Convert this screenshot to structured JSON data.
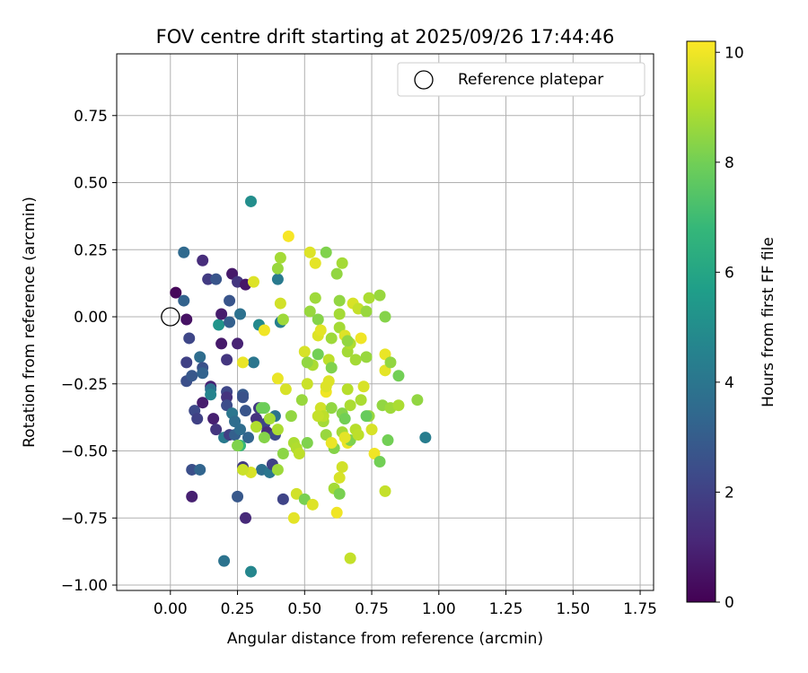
{
  "chart_data": {
    "type": "scatter",
    "title": "FOV centre drift starting at 2025/09/26 17:44:46",
    "xlabel": "Angular distance from reference (arcmin)",
    "ylabel": "Rotation from reference (arcmin)",
    "xlim": [
      -0.2,
      1.8
    ],
    "ylim": [
      -1.02,
      0.98
    ],
    "xticks": [
      0.0,
      0.25,
      0.5,
      0.75,
      1.0,
      1.25,
      1.5,
      1.75
    ],
    "xtick_labels": [
      "0.00",
      "0.25",
      "0.50",
      "0.75",
      "1.00",
      "1.25",
      "1.50",
      "1.75"
    ],
    "yticks": [
      -1.0,
      -0.75,
      -0.5,
      -0.25,
      0.0,
      0.25,
      0.5,
      0.75
    ],
    "ytick_labels": [
      "−1.00",
      "−0.75",
      "−0.50",
      "−0.25",
      "0.00",
      "0.25",
      "0.50",
      "0.75"
    ],
    "grid": true,
    "legend": {
      "position": "top-right",
      "label": "Reference platepar"
    },
    "reference_point": {
      "x": 0.0,
      "y": 0.0
    },
    "colorbar": {
      "label": "Hours from first FF file",
      "range": [
        0,
        10.2
      ],
      "ticks": [
        0,
        2,
        4,
        6,
        8,
        10
      ],
      "tick_labels": [
        "0",
        "2",
        "4",
        "6",
        "8",
        "10"
      ],
      "colormap": [
        "#440154",
        "#482878",
        "#3e4989",
        "#31688e",
        "#26828e",
        "#1f9e89",
        "#35b779",
        "#6ece58",
        "#b5de2b",
        "#fde725"
      ]
    },
    "points": [
      [
        0.02,
        0.09,
        0.2
      ],
      [
        0.05,
        0.24,
        3.5
      ],
      [
        0.05,
        0.06,
        3.2
      ],
      [
        0.06,
        -0.01,
        0.5
      ],
      [
        0.06,
        -0.17,
        2.0
      ],
      [
        0.06,
        -0.24,
        2.5
      ],
      [
        0.07,
        -0.08,
        2.2
      ],
      [
        0.08,
        -0.22,
        2.8
      ],
      [
        0.09,
        -0.35,
        2.3
      ],
      [
        0.1,
        -0.38,
        2.0
      ],
      [
        0.08,
        -0.57,
        2.5
      ],
      [
        0.08,
        -0.67,
        0.9
      ],
      [
        0.11,
        -0.15,
        3.6
      ],
      [
        0.12,
        -0.19,
        2.6
      ],
      [
        0.12,
        -0.21,
        3.2
      ],
      [
        0.12,
        0.21,
        1.3
      ],
      [
        0.12,
        -0.32,
        0.8
      ],
      [
        0.11,
        -0.57,
        3.3
      ],
      [
        0.14,
        0.14,
        1.8
      ],
      [
        0.15,
        -0.26,
        1.0
      ],
      [
        0.15,
        -0.27,
        3.8
      ],
      [
        0.15,
        -0.29,
        4.6
      ],
      [
        0.16,
        -0.38,
        0.9
      ],
      [
        0.17,
        0.14,
        2.7
      ],
      [
        0.17,
        -0.42,
        1.6
      ],
      [
        0.18,
        -0.03,
        5.3
      ],
      [
        0.19,
        0.01,
        0.8
      ],
      [
        0.19,
        -0.1,
        0.7
      ],
      [
        0.2,
        -0.45,
        4.2
      ],
      [
        0.2,
        -0.91,
        3.9
      ],
      [
        0.21,
        -0.16,
        1.6
      ],
      [
        0.21,
        -0.28,
        2.2
      ],
      [
        0.21,
        -0.3,
        1.5
      ],
      [
        0.21,
        -0.33,
        2.4
      ],
      [
        0.22,
        0.06,
        2.7
      ],
      [
        0.22,
        -0.44,
        1.9
      ],
      [
        0.22,
        -0.02,
        3.1
      ],
      [
        0.23,
        0.16,
        0.7
      ],
      [
        0.23,
        -0.36,
        4.0
      ],
      [
        0.24,
        -0.39,
        3.6
      ],
      [
        0.24,
        -0.44,
        3.1
      ],
      [
        0.25,
        0.13,
        1.6
      ],
      [
        0.25,
        -0.1,
        1.0
      ],
      [
        0.26,
        0.01,
        3.8
      ],
      [
        0.25,
        -0.67,
        2.8
      ],
      [
        0.26,
        -0.42,
        3.6
      ],
      [
        0.27,
        -0.29,
        2.9
      ],
      [
        0.26,
        -0.48,
        6.8
      ],
      [
        0.27,
        -0.3,
        2.6
      ],
      [
        0.28,
        0.12,
        0.6
      ],
      [
        0.28,
        -0.35,
        2.7
      ],
      [
        0.28,
        -0.75,
        1.2
      ],
      [
        0.29,
        -0.45,
        3.3
      ],
      [
        0.3,
        0.43,
        5.0
      ],
      [
        0.3,
        -0.95,
        4.7
      ],
      [
        0.31,
        -0.17,
        4.0
      ],
      [
        0.32,
        -0.38,
        1.5
      ],
      [
        0.33,
        -0.03,
        4.8
      ],
      [
        0.33,
        -0.34,
        1.8
      ],
      [
        0.34,
        -0.57,
        3.7
      ],
      [
        0.35,
        -0.4,
        2.1
      ],
      [
        0.36,
        -0.43,
        1.3
      ],
      [
        0.37,
        -0.58,
        4.0
      ],
      [
        0.38,
        -0.55,
        2.0
      ],
      [
        0.39,
        -0.37,
        3.9
      ],
      [
        0.39,
        -0.44,
        2.3
      ],
      [
        0.4,
        0.14,
        4.2
      ],
      [
        0.41,
        -0.02,
        4.4
      ],
      [
        0.42,
        -0.68,
        2.1
      ],
      [
        0.27,
        -0.56,
        1.8
      ],
      [
        0.31,
        0.13,
        9.7
      ],
      [
        0.27,
        -0.17,
        9.9
      ],
      [
        0.35,
        -0.05,
        10.0
      ],
      [
        0.44,
        0.3,
        10.1
      ],
      [
        0.4,
        -0.23,
        9.9
      ],
      [
        0.43,
        -0.27,
        9.6
      ],
      [
        0.41,
        0.05,
        9.5
      ],
      [
        0.4,
        0.18,
        8.6
      ],
      [
        0.41,
        0.22,
        8.8
      ],
      [
        0.42,
        -0.01,
        8.7
      ],
      [
        0.3,
        -0.58,
        9.6
      ],
      [
        0.32,
        -0.41,
        9.0
      ],
      [
        0.34,
        -0.34,
        8.0
      ],
      [
        0.25,
        -0.48,
        8.2
      ],
      [
        0.27,
        -0.57,
        9.4
      ],
      [
        0.35,
        -0.45,
        8.3
      ],
      [
        0.37,
        -0.38,
        8.8
      ],
      [
        0.4,
        -0.42,
        8.9
      ],
      [
        0.4,
        -0.57,
        8.7
      ],
      [
        0.42,
        -0.51,
        8.4
      ],
      [
        0.45,
        -0.37,
        8.5
      ],
      [
        0.46,
        -0.47,
        8.9
      ],
      [
        0.47,
        -0.49,
        9.0
      ],
      [
        0.48,
        -0.51,
        9.2
      ],
      [
        0.46,
        -0.75,
        9.8
      ],
      [
        0.47,
        -0.66,
        9.5
      ],
      [
        0.49,
        -0.31,
        8.6
      ],
      [
        0.5,
        -0.68,
        8.1
      ],
      [
        0.5,
        -0.13,
        9.6
      ],
      [
        0.51,
        -0.25,
        9.4
      ],
      [
        0.51,
        -0.47,
        8.2
      ],
      [
        0.52,
        0.24,
        9.7
      ],
      [
        0.52,
        0.02,
        8.6
      ],
      [
        0.53,
        -0.18,
        8.9
      ],
      [
        0.54,
        0.2,
        9.8
      ],
      [
        0.54,
        0.07,
        8.7
      ],
      [
        0.55,
        -0.01,
        8.3
      ],
      [
        0.55,
        -0.14,
        8.0
      ],
      [
        0.55,
        -0.07,
        9.7
      ],
      [
        0.56,
        -0.05,
        9.8
      ],
      [
        0.56,
        -0.34,
        9.5
      ],
      [
        0.57,
        -0.39,
        8.8
      ],
      [
        0.57,
        -0.37,
        9.2
      ],
      [
        0.58,
        -0.28,
        10.0
      ],
      [
        0.58,
        -0.44,
        8.6
      ],
      [
        0.58,
        -0.26,
        9.7
      ],
      [
        0.59,
        -0.24,
        9.7
      ],
      [
        0.59,
        -0.16,
        9.2
      ],
      [
        0.6,
        -0.08,
        8.7
      ],
      [
        0.6,
        -0.34,
        8.5
      ],
      [
        0.6,
        -0.19,
        8.2
      ],
      [
        0.61,
        -0.49,
        8.3
      ],
      [
        0.61,
        -0.64,
        8.8
      ],
      [
        0.62,
        -0.73,
        10.0
      ],
      [
        0.62,
        0.16,
        8.5
      ],
      [
        0.63,
        0.06,
        8.5
      ],
      [
        0.63,
        0.01,
        8.8
      ],
      [
        0.63,
        -0.04,
        8.8
      ],
      [
        0.63,
        -0.6,
        9.6
      ],
      [
        0.64,
        -0.43,
        8.8
      ],
      [
        0.64,
        -0.36,
        8.3
      ],
      [
        0.64,
        0.2,
        8.8
      ],
      [
        0.65,
        -0.07,
        9.7
      ],
      [
        0.65,
        -0.38,
        8.0
      ],
      [
        0.66,
        -0.13,
        8.8
      ],
      [
        0.66,
        -0.27,
        9.1
      ],
      [
        0.66,
        -0.47,
        9.9
      ],
      [
        0.67,
        -0.33,
        8.9
      ],
      [
        0.67,
        -0.1,
        9.0
      ],
      [
        0.67,
        -0.9,
        9.3
      ],
      [
        0.67,
        -0.46,
        8.2
      ],
      [
        0.68,
        0.05,
        9.6
      ],
      [
        0.69,
        -0.16,
        8.8
      ],
      [
        0.69,
        -0.42,
        9.1
      ],
      [
        0.7,
        0.03,
        9.3
      ],
      [
        0.7,
        -0.44,
        9.2
      ],
      [
        0.71,
        -0.08,
        10.0
      ],
      [
        0.71,
        -0.31,
        8.9
      ],
      [
        0.72,
        -0.26,
        9.6
      ],
      [
        0.73,
        0.02,
        8.6
      ],
      [
        0.73,
        -0.15,
        8.6
      ],
      [
        0.74,
        0.07,
        8.9
      ],
      [
        0.74,
        -0.37,
        8.6
      ],
      [
        0.75,
        -0.42,
        9.6
      ],
      [
        0.76,
        -0.51,
        10.0
      ],
      [
        0.78,
        -0.54,
        8.0
      ],
      [
        0.78,
        0.08,
        8.6
      ],
      [
        0.79,
        -0.33,
        8.5
      ],
      [
        0.8,
        -0.2,
        9.8
      ],
      [
        0.8,
        -0.14,
        9.9
      ],
      [
        0.8,
        -0.65,
        9.3
      ],
      [
        0.8,
        0.0,
        8.3
      ],
      [
        0.81,
        -0.46,
        8.0
      ],
      [
        0.82,
        -0.17,
        8.5
      ],
      [
        0.82,
        -0.34,
        8.7
      ],
      [
        0.85,
        -0.33,
        8.9
      ],
      [
        0.85,
        -0.22,
        8.0
      ],
      [
        0.92,
        -0.31,
        8.5
      ],
      [
        0.95,
        -0.45,
        4.3
      ],
      [
        0.63,
        -0.66,
        8.1
      ],
      [
        0.64,
        -0.56,
        9.5
      ],
      [
        0.65,
        -0.45,
        9.8
      ],
      [
        0.6,
        -0.47,
        9.9
      ],
      [
        0.53,
        -0.7,
        9.7
      ],
      [
        0.51,
        -0.17,
        8.5
      ],
      [
        0.73,
        -0.37,
        7.8
      ],
      [
        0.58,
        0.24,
        8.2
      ],
      [
        0.66,
        -0.09,
        8.5
      ],
      [
        0.55,
        -0.37,
        9.3
      ],
      [
        0.35,
        -0.34,
        7.9
      ]
    ]
  }
}
